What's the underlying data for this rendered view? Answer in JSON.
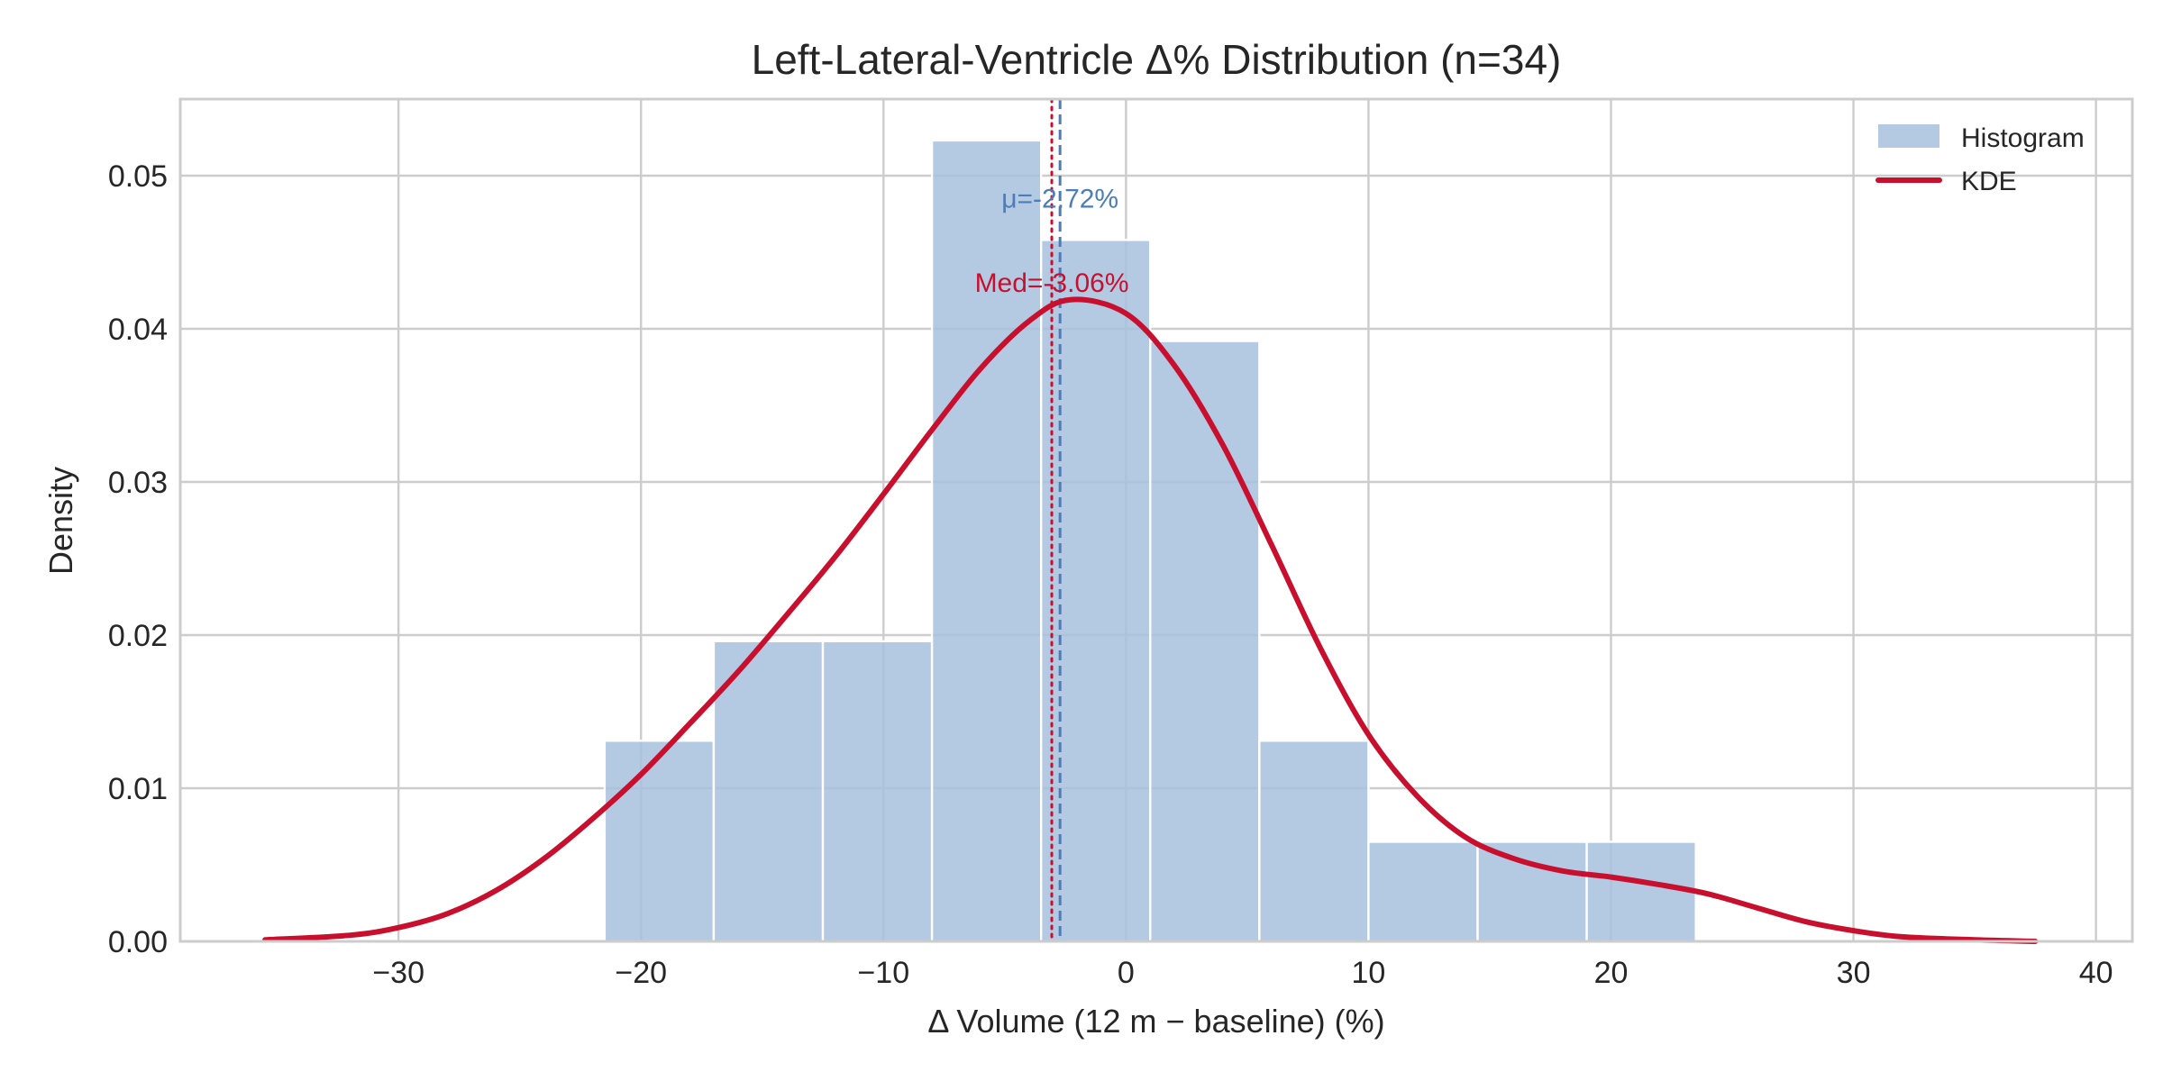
{
  "chart_data": {
    "type": "bar",
    "title": "Left-Lateral-Ventricle  Δ% Distribution  (n=34)",
    "xlabel": "Δ Volume (12 m − baseline) (%)",
    "ylabel": "Density",
    "xlim": [
      -39,
      41.5
    ],
    "ylim": [
      0,
      0.055
    ],
    "xticks": [
      -30,
      -20,
      -10,
      0,
      10,
      20,
      30,
      40
    ],
    "xtick_labels": [
      "−30",
      "−20",
      "−10",
      "0",
      "10",
      "20",
      "30",
      "40"
    ],
    "yticks": [
      0,
      0.01,
      0.02,
      0.03,
      0.04,
      0.05
    ],
    "ytick_labels": [
      "0.00",
      "0.01",
      "0.02",
      "0.03",
      "0.04",
      "0.05"
    ],
    "grid": true,
    "legend": {
      "position": "top-right",
      "entries": [
        {
          "label": "Histogram",
          "type": "patch",
          "color": "#a7bfdd"
        },
        {
          "label": "KDE",
          "type": "line",
          "color": "#c8102e"
        }
      ]
    },
    "histogram": {
      "name": "Histogram",
      "color": "#a7bfdd",
      "bin_edges": [
        -21.5,
        -17.0,
        -12.5,
        -8.0,
        -3.5,
        1.0,
        5.5,
        10.0,
        14.5,
        19.0,
        23.5
      ],
      "density": [
        0.0131,
        0.0196,
        0.0196,
        0.0523,
        0.0458,
        0.0392,
        0.0131,
        0.0065,
        0.0065,
        0.0065
      ]
    },
    "kde": {
      "name": "KDE",
      "color": "#c8102e",
      "x": [
        -35.5,
        -32,
        -30,
        -28,
        -26,
        -24,
        -22,
        -20,
        -18,
        -16,
        -14,
        -12,
        -10,
        -8,
        -6,
        -4,
        -2.3,
        0,
        2,
        4,
        6,
        8,
        10,
        12,
        14,
        16,
        18,
        20,
        22,
        24,
        26,
        28,
        30,
        32,
        35,
        37.5
      ],
      "y": [
        0.0001,
        0.0004,
        0.0009,
        0.0018,
        0.0033,
        0.0054,
        0.008,
        0.0109,
        0.0142,
        0.0176,
        0.0213,
        0.0251,
        0.0292,
        0.0334,
        0.0374,
        0.0405,
        0.0419,
        0.041,
        0.0376,
        0.0324,
        0.0259,
        0.0192,
        0.0135,
        0.0095,
        0.0068,
        0.0054,
        0.0046,
        0.0042,
        0.0037,
        0.0031,
        0.0022,
        0.0013,
        0.0007,
        0.0003,
        0.0001,
        0.0
      ]
    },
    "annotations": [
      {
        "name": "mean",
        "label": "μ=-2.72%",
        "value": -2.72,
        "color": "#4a7dba",
        "style": "dashed"
      },
      {
        "name": "median",
        "label": "Med=-3.06%",
        "value": -3.06,
        "color": "#c8102e",
        "style": "dotted"
      }
    ]
  }
}
